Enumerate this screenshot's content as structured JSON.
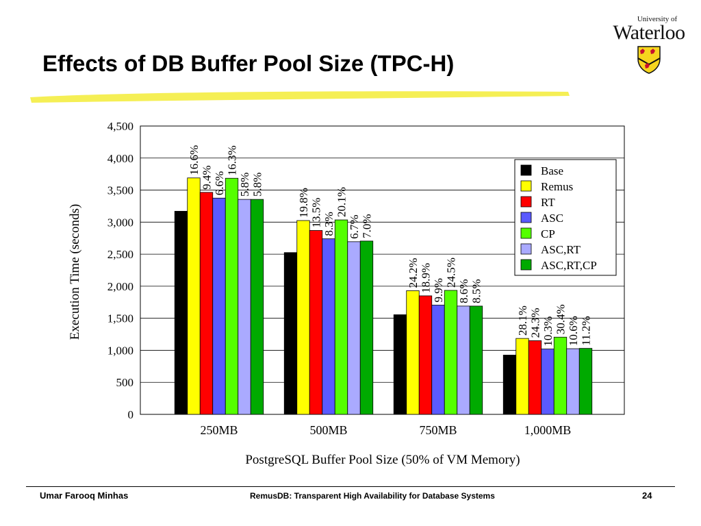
{
  "slide": {
    "title": "Effects of DB Buffer Pool Size (TPC-H)"
  },
  "logo": {
    "line1": "University of",
    "line2": "Waterloo"
  },
  "footer": {
    "author": "Umar Farooq Minhas",
    "title": "RemusDB: Transparent High Availability for Database Systems",
    "page": "24"
  },
  "colors": {
    "highlight": "#f5ef55",
    "Base": "#000000",
    "Remus": "#ffff00",
    "RT": "#ff0000",
    "ASC": "#5a5aff",
    "CP": "#55ff00",
    "ASC,RT": "#aaaaff",
    "ASC,RT,CP": "#00aa00"
  },
  "chart_data": {
    "type": "bar",
    "title": "",
    "xlabel": "PostgreSQL Buffer Pool Size (50% of VM Memory)",
    "ylabel": "Execution Time (seconds)",
    "ylim": [
      0,
      4500
    ],
    "yticks": [
      "0",
      "500",
      "1,000",
      "1,500",
      "2,000",
      "2,500",
      "3,000",
      "3,500",
      "4,000",
      "4,500"
    ],
    "ytick_values": [
      0,
      500,
      1000,
      1500,
      2000,
      2500,
      3000,
      3500,
      4000,
      4500
    ],
    "grid": "horizontal",
    "legend_position": "top-right",
    "categories": [
      "250MB",
      "500MB",
      "750MB",
      "1,000MB"
    ],
    "series": [
      {
        "name": "Base",
        "values": [
          3170,
          2525,
          1555,
          925
        ],
        "labels": [
          "",
          "",
          "",
          ""
        ]
      },
      {
        "name": "Remus",
        "values": [
          3690,
          3025,
          1930,
          1185
        ],
        "labels": [
          "16.6%",
          "19.8%",
          "24.2%",
          "28.1%"
        ]
      },
      {
        "name": "RT",
        "values": [
          3465,
          2870,
          1850,
          1150
        ],
        "labels": [
          "9.4%",
          "13.5%",
          "18.9%",
          "24.3%"
        ]
      },
      {
        "name": "ASC",
        "values": [
          3375,
          2740,
          1705,
          1020
        ],
        "labels": [
          "6.6%",
          "8.3%",
          "9.9%",
          "10.3%"
        ]
      },
      {
        "name": "CP",
        "values": [
          3685,
          3035,
          1935,
          1205
        ],
        "labels": [
          "16.3%",
          "20.1%",
          "24.5%",
          "30.4%"
        ]
      },
      {
        "name": "ASC,RT",
        "values": [
          3355,
          2695,
          1690,
          1025
        ],
        "labels": [
          "5.8%",
          "6.7%",
          "8.6%",
          "10.6%"
        ]
      },
      {
        "name": "ASC,RT,CP",
        "values": [
          3355,
          2705,
          1690,
          1030
        ],
        "labels": [
          "5.8%",
          "7.0%",
          "8.5%",
          "11.2%"
        ]
      }
    ]
  }
}
